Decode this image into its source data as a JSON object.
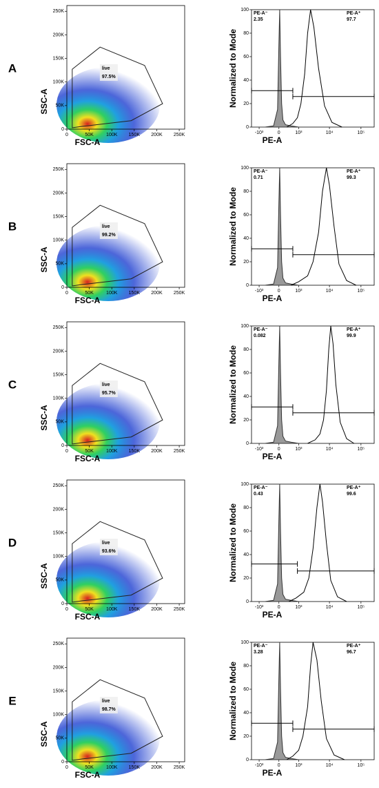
{
  "panel_labels": [
    "A",
    "B",
    "C",
    "D",
    "E"
  ],
  "chart_data": [
    {
      "type": "scatter",
      "xlabel": "FSC-A",
      "ylabel": "SSC-A",
      "xlim": [
        0,
        262144
      ],
      "ylim": [
        0,
        262144
      ],
      "xticks": [
        0,
        {
          "value": 50000,
          "label": "50K"
        },
        {
          "value": 100000,
          "label": "100K"
        },
        {
          "value": 150000,
          "label": "150K"
        },
        {
          "value": 200000,
          "label": "200K"
        },
        {
          "value": 250000,
          "label": "250K"
        }
      ],
      "yticks": [
        0,
        {
          "value": 50000,
          "label": "50K"
        },
        {
          "value": 100000,
          "label": "100K"
        },
        {
          "value": 150000,
          "label": "150K"
        },
        {
          "value": 200000,
          "label": "200K"
        },
        {
          "value": 250000,
          "label": "250K"
        }
      ],
      "gate": {
        "name": "live",
        "label": "97.5%",
        "x": [
          12000,
          12000,
          74000,
          173000,
          213000,
          143000,
          35000
        ],
        "y": [
          3000,
          127000,
          174000,
          135000,
          54000,
          18000,
          6000
        ]
      }
    },
    {
      "type": "line",
      "xlabel": "PE-A",
      "ylabel": "Normalized to Mode",
      "xscale": "biexponential",
      "xlim": [
        -1813,
        262144
      ],
      "ylim": [
        0,
        100
      ],
      "xticks": [
        {
          "value": -1000,
          "label": "-10³"
        },
        0,
        {
          "value": 1000,
          "label": "10³"
        },
        {
          "value": 10000,
          "label": "10⁴"
        },
        {
          "value": 100000,
          "label": "10⁵"
        }
      ],
      "yticks": [
        0,
        20,
        40,
        60,
        80,
        100
      ],
      "series": [
        {
          "color": "#999999",
          "fill": true,
          "x": [
            -600,
            -200,
            -50,
            0,
            30,
            60,
            100,
            150,
            250,
            500,
            1000
          ],
          "values": [
            0,
            1,
            15,
            70,
            100,
            60,
            20,
            6,
            2,
            1,
            0
          ]
        },
        {
          "color": "#000000",
          "fill": false,
          "x": [
            300,
            600,
            900,
            1200,
            1600,
            2000,
            2500,
            3200,
            4500,
            7000,
            12000,
            25000
          ],
          "values": [
            0,
            3,
            8,
            20,
            45,
            80,
            100,
            85,
            50,
            18,
            4,
            0
          ]
        }
      ],
      "gates": [
        {
          "name": "PE-A⁻",
          "label": "2.35",
          "x": [
            -1813,
            600
          ],
          "y": 31
        },
        {
          "name": "PE-A⁺",
          "label": "97.7",
          "x": [
            600,
            262144
          ],
          "y": 26
        }
      ]
    },
    {
      "type": "scatter",
      "xlabel": "FSC-A",
      "ylabel": "SSC-A",
      "xlim": [
        0,
        262144
      ],
      "ylim": [
        0,
        262144
      ],
      "xticks": [
        0,
        {
          "value": 50000,
          "label": "50K"
        },
        {
          "value": 100000,
          "label": "100K"
        },
        {
          "value": 150000,
          "label": "150K"
        },
        {
          "value": 200000,
          "label": "200K"
        },
        {
          "value": 250000,
          "label": "250K"
        }
      ],
      "yticks": [
        0,
        {
          "value": 50000,
          "label": "50K"
        },
        {
          "value": 100000,
          "label": "100K"
        },
        {
          "value": 150000,
          "label": "150K"
        },
        {
          "value": 200000,
          "label": "200K"
        },
        {
          "value": 250000,
          "label": "250K"
        }
      ],
      "gate": {
        "name": "live",
        "label": "99.2%",
        "x": [
          12000,
          12000,
          74000,
          173000,
          213000,
          143000,
          35000
        ],
        "y": [
          3000,
          127000,
          174000,
          135000,
          54000,
          18000,
          6000
        ]
      }
    },
    {
      "type": "line",
      "xlabel": "PE-A",
      "ylabel": "Normalized to Mode",
      "xscale": "biexponential",
      "xlim": [
        -1813,
        262144
      ],
      "ylim": [
        0,
        100
      ],
      "xticks": [
        {
          "value": -1000,
          "label": "-10³"
        },
        0,
        {
          "value": 1000,
          "label": "10³"
        },
        {
          "value": 10000,
          "label": "10⁴"
        },
        {
          "value": 100000,
          "label": "10⁵"
        }
      ],
      "yticks": [
        0,
        20,
        40,
        60,
        80,
        100
      ],
      "series": [
        {
          "color": "#999999",
          "fill": true,
          "x": [
            -600,
            -200,
            -50,
            0,
            30,
            60,
            100,
            150,
            250,
            500,
            1000
          ],
          "values": [
            0,
            1,
            15,
            70,
            100,
            60,
            20,
            6,
            2,
            1,
            0
          ]
        },
        {
          "color": "#000000",
          "fill": false,
          "x": [
            500,
            1000,
            2000,
            3000,
            4500,
            6000,
            8000,
            10000,
            14000,
            20000,
            35000,
            70000
          ],
          "values": [
            0,
            3,
            8,
            20,
            45,
            80,
            100,
            85,
            50,
            18,
            4,
            0
          ]
        }
      ],
      "gates": [
        {
          "name": "PE-A⁻",
          "label": "0.71",
          "x": [
            -1813,
            600
          ],
          "y": 31
        },
        {
          "name": "PE-A⁺",
          "label": "99.3",
          "x": [
            600,
            262144
          ],
          "y": 26
        }
      ]
    },
    {
      "type": "scatter",
      "xlabel": "FSC-A",
      "ylabel": "SSC-A",
      "xlim": [
        0,
        262144
      ],
      "ylim": [
        0,
        262144
      ],
      "xticks": [
        0,
        {
          "value": 50000,
          "label": "50K"
        },
        {
          "value": 100000,
          "label": "100K"
        },
        {
          "value": 150000,
          "label": "150K"
        },
        {
          "value": 200000,
          "label": "200K"
        },
        {
          "value": 250000,
          "label": "250K"
        }
      ],
      "yticks": [
        0,
        {
          "value": 50000,
          "label": "50K"
        },
        {
          "value": 100000,
          "label": "100K"
        },
        {
          "value": 150000,
          "label": "150K"
        },
        {
          "value": 200000,
          "label": "200K"
        },
        {
          "value": 250000,
          "label": "250K"
        }
      ],
      "gate": {
        "name": "live",
        "label": "95.7%",
        "x": [
          12000,
          12000,
          74000,
          173000,
          213000,
          143000,
          35000
        ],
        "y": [
          3000,
          127000,
          174000,
          135000,
          54000,
          18000,
          6000
        ]
      }
    },
    {
      "type": "line",
      "xlabel": "PE-A",
      "ylabel": "Normalized to Mode",
      "xscale": "biexponential",
      "xlim": [
        -1813,
        262144
      ],
      "ylim": [
        0,
        100
      ],
      "xticks": [
        {
          "value": -1000,
          "label": "-10³"
        },
        0,
        {
          "value": 1000,
          "label": "10³"
        },
        {
          "value": 10000,
          "label": "10⁴"
        },
        {
          "value": 100000,
          "label": "10⁵"
        }
      ],
      "yticks": [
        0,
        20,
        40,
        60,
        80,
        100
      ],
      "series": [
        {
          "color": "#999999",
          "fill": true,
          "x": [
            -600,
            -200,
            -50,
            0,
            30,
            60,
            100,
            150,
            250,
            500,
            1000
          ],
          "values": [
            0,
            1,
            15,
            70,
            100,
            60,
            20,
            6,
            2,
            1,
            0
          ]
        },
        {
          "color": "#000000",
          "fill": false,
          "x": [
            2000,
            3500,
            5000,
            6500,
            8000,
            9500,
            11000,
            13000,
            16000,
            22000,
            35000,
            60000
          ],
          "values": [
            0,
            3,
            8,
            20,
            45,
            80,
            100,
            85,
            50,
            18,
            4,
            0
          ]
        }
      ],
      "gates": [
        {
          "name": "PE-A⁻",
          "label": "0.082",
          "x": [
            -1813,
            600
          ],
          "y": 31
        },
        {
          "name": "PE-A⁺",
          "label": "99.9",
          "x": [
            600,
            262144
          ],
          "y": 26
        }
      ]
    },
    {
      "type": "scatter",
      "xlabel": "FSC-A",
      "ylabel": "SSC-A",
      "xlim": [
        0,
        262144
      ],
      "ylim": [
        0,
        262144
      ],
      "xticks": [
        0,
        {
          "value": 50000,
          "label": "50K"
        },
        {
          "value": 100000,
          "label": "100K"
        },
        {
          "value": 150000,
          "label": "150K"
        },
        {
          "value": 200000,
          "label": "200K"
        },
        {
          "value": 250000,
          "label": "250K"
        }
      ],
      "yticks": [
        0,
        {
          "value": 50000,
          "label": "50K"
        },
        {
          "value": 100000,
          "label": "100K"
        },
        {
          "value": 150000,
          "label": "150K"
        },
        {
          "value": 200000,
          "label": "200K"
        },
        {
          "value": 250000,
          "label": "250K"
        }
      ],
      "gate": {
        "name": "live",
        "label": "93.6%",
        "x": [
          12000,
          12000,
          74000,
          173000,
          213000,
          143000,
          35000
        ],
        "y": [
          3000,
          127000,
          174000,
          135000,
          54000,
          18000,
          6000
        ]
      }
    },
    {
      "type": "line",
      "xlabel": "PE-A",
      "ylabel": "Normalized to Mode",
      "xscale": "biexponential",
      "xlim": [
        -1813,
        262144
      ],
      "ylim": [
        0,
        100
      ],
      "xticks": [
        {
          "value": -1000,
          "label": "-10³"
        },
        0,
        {
          "value": 1000,
          "label": "10³"
        },
        {
          "value": 10000,
          "label": "10⁴"
        },
        {
          "value": 100000,
          "label": "10⁵"
        }
      ],
      "yticks": [
        0,
        20,
        40,
        60,
        80,
        100
      ],
      "series": [
        {
          "color": "#999999",
          "fill": true,
          "x": [
            -600,
            -200,
            -50,
            0,
            30,
            60,
            100,
            150,
            250,
            500,
            1000
          ],
          "values": [
            0,
            1,
            15,
            70,
            100,
            60,
            20,
            6,
            2,
            1,
            0
          ]
        },
        {
          "color": "#000000",
          "fill": false,
          "x": [
            400,
            800,
            1500,
            2200,
            3000,
            4000,
            5000,
            6000,
            8000,
            11000,
            18000,
            35000
          ],
          "values": [
            0,
            3,
            8,
            20,
            45,
            80,
            100,
            85,
            50,
            18,
            4,
            0
          ]
        }
      ],
      "gates": [
        {
          "name": "PE-A⁻",
          "label": "0.43",
          "x": [
            -1813,
            900
          ],
          "y": 32
        },
        {
          "name": "PE-A⁺",
          "label": "99.6",
          "x": [
            900,
            262144
          ],
          "y": 26
        }
      ]
    },
    {
      "type": "scatter",
      "xlabel": "FSC-A",
      "ylabel": "SSC-A",
      "xlim": [
        0,
        262144
      ],
      "ylim": [
        0,
        262144
      ],
      "xticks": [
        0,
        {
          "value": 50000,
          "label": "50K"
        },
        {
          "value": 100000,
          "label": "100K"
        },
        {
          "value": 150000,
          "label": "150K"
        },
        {
          "value": 200000,
          "label": "200K"
        },
        {
          "value": 250000,
          "label": "250K"
        }
      ],
      "yticks": [
        0,
        {
          "value": 50000,
          "label": "50K"
        },
        {
          "value": 100000,
          "label": "100K"
        },
        {
          "value": 150000,
          "label": "150K"
        },
        {
          "value": 200000,
          "label": "200K"
        },
        {
          "value": 250000,
          "label": "250K"
        }
      ],
      "gate": {
        "name": "live",
        "label": "98.7%",
        "x": [
          12000,
          12000,
          74000,
          173000,
          213000,
          143000,
          35000
        ],
        "y": [
          3000,
          127000,
          174000,
          135000,
          54000,
          18000,
          6000
        ]
      }
    },
    {
      "type": "line",
      "xlabel": "PE-A",
      "ylabel": "Normalized to Mode",
      "xscale": "biexponential",
      "xlim": [
        -1813,
        262144
      ],
      "ylim": [
        0,
        100
      ],
      "xticks": [
        {
          "value": -1000,
          "label": "-10³"
        },
        0,
        {
          "value": 1000,
          "label": "10³"
        },
        {
          "value": 10000,
          "label": "10⁴"
        },
        {
          "value": 100000,
          "label": "10⁵"
        }
      ],
      "yticks": [
        0,
        20,
        40,
        60,
        80,
        100
      ],
      "series": [
        {
          "color": "#999999",
          "fill": true,
          "x": [
            -600,
            -200,
            -50,
            0,
            30,
            60,
            100,
            150,
            250,
            500,
            1000
          ],
          "values": [
            0,
            1,
            15,
            70,
            100,
            60,
            20,
            6,
            2,
            1,
            0
          ]
        },
        {
          "color": "#000000",
          "fill": false,
          "x": [
            300,
            600,
            1000,
            1400,
            2000,
            2500,
            3000,
            4000,
            5500,
            8000,
            14000,
            30000
          ],
          "values": [
            0,
            3,
            8,
            20,
            45,
            80,
            100,
            85,
            50,
            18,
            4,
            0
          ]
        }
      ],
      "gates": [
        {
          "name": "PE-A⁻",
          "label": "3.28",
          "x": [
            -1813,
            600
          ],
          "y": 31
        },
        {
          "name": "PE-A⁺",
          "label": "96.7",
          "x": [
            600,
            262144
          ],
          "y": 26
        }
      ]
    }
  ]
}
